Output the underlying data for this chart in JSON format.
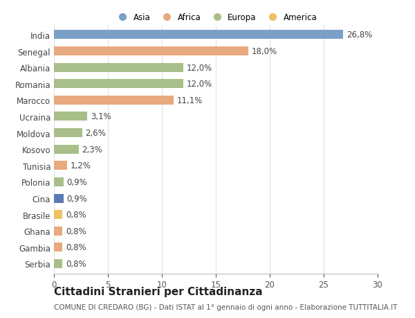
{
  "countries": [
    "India",
    "Senegal",
    "Albania",
    "Romania",
    "Marocco",
    "Ucraina",
    "Moldova",
    "Kosovo",
    "Tunisia",
    "Polonia",
    "Cina",
    "Brasile",
    "Ghana",
    "Gambia",
    "Serbia"
  ],
  "values": [
    26.8,
    18.0,
    12.0,
    12.0,
    11.1,
    3.1,
    2.6,
    2.3,
    1.2,
    0.9,
    0.9,
    0.8,
    0.8,
    0.8,
    0.8
  ],
  "labels": [
    "26,8%",
    "18,0%",
    "12,0%",
    "12,0%",
    "11,1%",
    "3,1%",
    "2,6%",
    "2,3%",
    "1,2%",
    "0,9%",
    "0,9%",
    "0,8%",
    "0,8%",
    "0,8%",
    "0,8%"
  ],
  "colors": [
    "#7b9fc7",
    "#e8a97e",
    "#a8bf8a",
    "#a8bf8a",
    "#e8a97e",
    "#a8bf8a",
    "#a8bf8a",
    "#a8bf8a",
    "#e8a97e",
    "#a8bf8a",
    "#5a7ab5",
    "#f0c060",
    "#e8a97e",
    "#e8a97e",
    "#a8bf8a"
  ],
  "legend_labels": [
    "Asia",
    "Africa",
    "Europa",
    "America"
  ],
  "legend_colors": [
    "#7b9fc7",
    "#e8a97e",
    "#a8bf8a",
    "#f0c060"
  ],
  "title": "Cittadini Stranieri per Cittadinanza",
  "subtitle": "COMUNE DI CREDARO (BG) - Dati ISTAT al 1° gennaio di ogni anno - Elaborazione TUTTITALIA.IT",
  "xlim": [
    0,
    30
  ],
  "xticks": [
    0,
    5,
    10,
    15,
    20,
    25,
    30
  ],
  "background_color": "#ffffff",
  "bar_height": 0.55,
  "grid_color": "#e0e0e0",
  "label_fontsize": 8.5,
  "tick_fontsize": 8.5,
  "title_fontsize": 11,
  "subtitle_fontsize": 7.5
}
